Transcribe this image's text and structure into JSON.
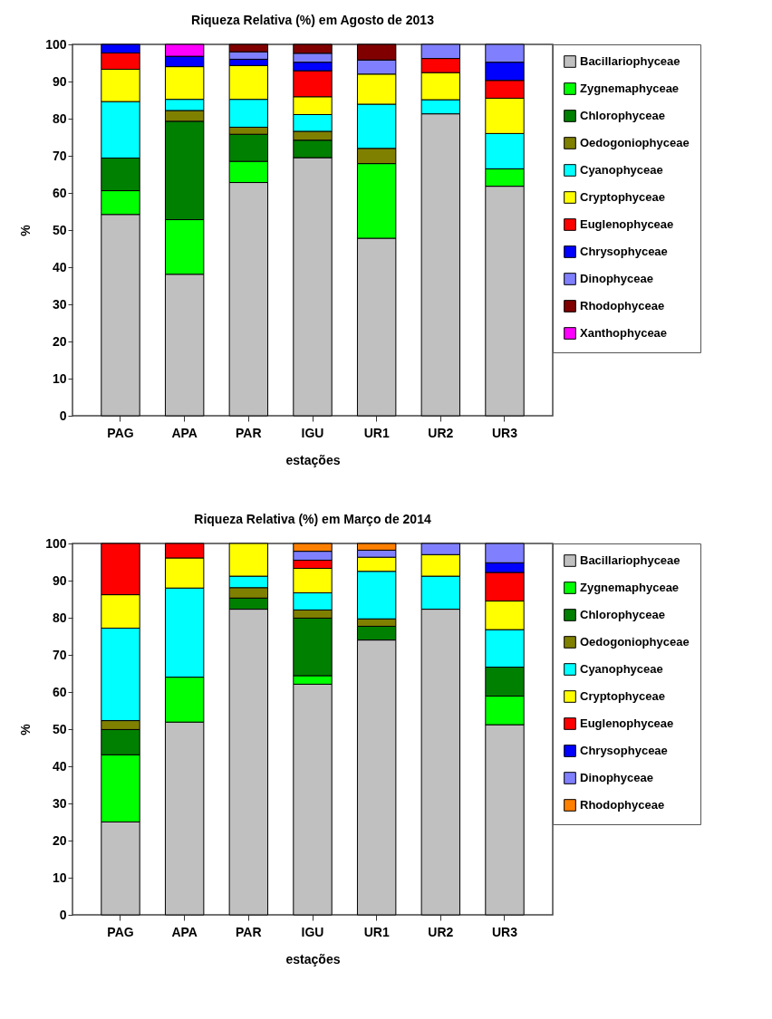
{
  "chart_data": [
    {
      "type": "bar",
      "stacked": true,
      "title": "Riqueza Relativa (%) em Agosto de 2013",
      "xlabel": "estações",
      "ylabel": "%",
      "categories": [
        "PAG",
        "APA",
        "PAR",
        "IGU",
        "UR1",
        "UR2",
        "UR3"
      ],
      "ylim": [
        0,
        100
      ],
      "yticks": [
        0,
        10,
        20,
        30,
        40,
        50,
        60,
        70,
        80,
        90,
        100
      ],
      "grid": false,
      "legend": "top right",
      "series": [
        {
          "name": "Bacillariophyceae",
          "color": "#c0c0c0",
          "values": [
            54.2,
            38.1,
            62.8,
            69.5,
            47.8,
            81.3,
            61.8
          ]
        },
        {
          "name": "Zygnemaphyceae",
          "color": "#00ff00",
          "values": [
            6.4,
            14.7,
            5.7,
            null,
            20.1,
            null,
            4.7
          ]
        },
        {
          "name": "Chlorophyceae",
          "color": "#008000",
          "values": [
            8.8,
            26.5,
            7.3,
            4.7,
            null,
            null,
            null
          ]
        },
        {
          "name": "Oedogoniophyceae",
          "color": "#808000",
          "values": [
            null,
            2.9,
            1.9,
            2.4,
            4.1,
            null,
            null
          ]
        },
        {
          "name": "Cyanophyceae",
          "color": "#00ffff",
          "values": [
            15.2,
            3.0,
            7.5,
            4.5,
            11.9,
            3.8,
            9.5
          ]
        },
        {
          "name": "Cryptophyceae",
          "color": "#ffff00",
          "values": [
            8.7,
            8.8,
            9.1,
            4.8,
            8.1,
            7.3,
            9.5
          ]
        },
        {
          "name": "Euglenophyceae",
          "color": "#ff0000",
          "values": [
            4.4,
            null,
            null,
            7.0,
            null,
            3.8,
            4.8
          ]
        },
        {
          "name": "Chrysophyceae",
          "color": "#0000ff",
          "values": [
            2.3,
            2.8,
            1.7,
            2.3,
            null,
            null,
            4.9
          ]
        },
        {
          "name": "Dinophyceae",
          "color": "#8080ff",
          "values": [
            null,
            null,
            2.0,
            2.4,
            3.8,
            3.8,
            4.8
          ]
        },
        {
          "name": "Rhodophyceae",
          "color": "#800000",
          "values": [
            null,
            null,
            2.0,
            2.4,
            4.2,
            null,
            null
          ]
        },
        {
          "name": "Xanthophyceae",
          "color": "#ff00ff",
          "values": [
            null,
            3.2,
            null,
            null,
            null,
            null,
            null
          ]
        }
      ]
    },
    {
      "type": "bar",
      "stacked": true,
      "title": "Riqueza Relativa (%) em Março de 2014",
      "xlabel": "estações",
      "ylabel": "%",
      "categories": [
        "PAG",
        "APA",
        "PAR",
        "IGU",
        "UR1",
        "UR2",
        "UR3"
      ],
      "ylim": [
        0,
        100
      ],
      "yticks": [
        0,
        10,
        20,
        30,
        40,
        50,
        60,
        70,
        80,
        90,
        100
      ],
      "grid": false,
      "legend": "top right",
      "series": [
        {
          "name": "Bacillariophyceae",
          "color": "#c0c0c0",
          "values": [
            25.0,
            51.9,
            82.3,
            62.1,
            74.0,
            82.3,
            51.2
          ]
        },
        {
          "name": "Zygnemaphyceae",
          "color": "#00ff00",
          "values": [
            18.1,
            12.1,
            null,
            2.3,
            null,
            null,
            7.7
          ]
        },
        {
          "name": "Chlorophyceae",
          "color": "#008000",
          "values": [
            6.8,
            null,
            3.0,
            15.5,
            3.7,
            null,
            7.8
          ]
        },
        {
          "name": "Oedogoniophyceae",
          "color": "#808000",
          "values": [
            2.4,
            null,
            2.8,
            2.2,
            2.0,
            null,
            null
          ]
        },
        {
          "name": "Cyanophyceae",
          "color": "#00ffff",
          "values": [
            24.9,
            24.0,
            3.1,
            4.6,
            12.8,
            8.9,
            10.1
          ]
        },
        {
          "name": "Cryptophyceae",
          "color": "#ffff00",
          "values": [
            9.0,
            8.1,
            8.8,
            6.6,
            3.8,
            5.8,
            7.7
          ]
        },
        {
          "name": "Euglenophyceae",
          "color": "#ff0000",
          "values": [
            13.8,
            3.9,
            null,
            2.2,
            null,
            null,
            7.7
          ]
        },
        {
          "name": "Chrysophyceae",
          "color": "#0000ff",
          "values": [
            null,
            null,
            null,
            null,
            null,
            null,
            2.6
          ]
        },
        {
          "name": "Dinophyceae",
          "color": "#8080ff",
          "values": [
            null,
            null,
            null,
            2.4,
            1.9,
            3.0,
            5.2
          ]
        },
        {
          "name": "Rhodophyceae",
          "color": "#ff8000",
          "values": [
            null,
            null,
            null,
            2.1,
            1.8,
            null,
            null
          ]
        }
      ]
    }
  ]
}
